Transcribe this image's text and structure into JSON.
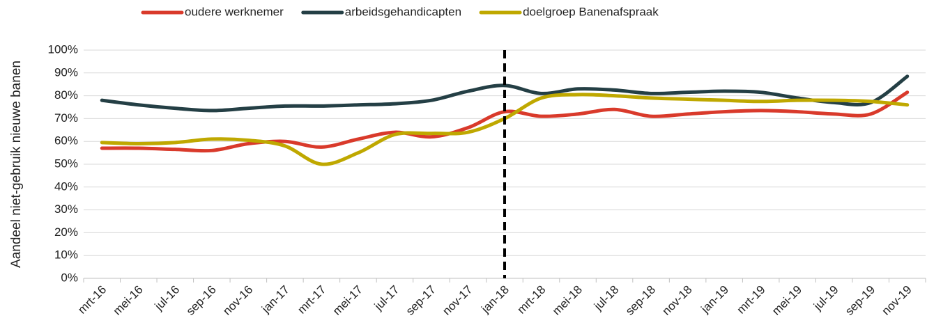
{
  "chart_data": {
    "type": "line",
    "y_label": "Aandeel niet-gebruik nieuwe banen",
    "categories": [
      "mrt-16",
      "mei-16",
      "jul-16",
      "sep-16",
      "nov-16",
      "jan-17",
      "mrt-17",
      "mei-17",
      "jul-17",
      "sep-17",
      "nov-17",
      "jan-18",
      "mrt-18",
      "mei-18",
      "jul-18",
      "sep-18",
      "nov-18",
      "jan-19",
      "mrt-19",
      "mei-19",
      "jul-19",
      "sep-19",
      "nov-19"
    ],
    "series": [
      {
        "name": "oudere werknemer",
        "color": "#d93a2b",
        "values": [
          57,
          57,
          56.5,
          56,
          59,
          60,
          57.5,
          61,
          64,
          62,
          66,
          73,
          71,
          72,
          74,
          71,
          72,
          73,
          73.5,
          73,
          72,
          72,
          81.5
        ]
      },
      {
        "name": "arbeidsgehandicapten",
        "color": "#243f45",
        "values": [
          78,
          76,
          74.5,
          73.5,
          74.5,
          75.5,
          75.5,
          76,
          76.5,
          78,
          82,
          84.5,
          81,
          83,
          82.5,
          81,
          81.5,
          82,
          81.5,
          79,
          77,
          77,
          88.5
        ]
      },
      {
        "name": "doelgroep Banenafspraak",
        "color": "#bfa800",
        "values": [
          59.5,
          59,
          59.5,
          61,
          60.5,
          58,
          50,
          55,
          63,
          63.5,
          64,
          70,
          79,
          80.5,
          80,
          79,
          78.5,
          78,
          77.5,
          78,
          78,
          77.5,
          76
        ]
      }
    ],
    "ylim": [
      0,
      100
    ],
    "yticks": [
      {
        "value": 0,
        "label": "0%"
      },
      {
        "value": 10,
        "label": "10%"
      },
      {
        "value": 20,
        "label": "20%"
      },
      {
        "value": 30,
        "label": "30%"
      },
      {
        "value": 40,
        "label": "40%"
      },
      {
        "value": 50,
        "label": "50%"
      },
      {
        "value": 60,
        "label": "60%"
      },
      {
        "value": 70,
        "label": "70%"
      },
      {
        "value": 80,
        "label": "80%"
      },
      {
        "value": 90,
        "label": "90%"
      },
      {
        "value": 100,
        "label": "100%"
      }
    ],
    "grid": true,
    "smooth": true,
    "reference_line": {
      "category_index": 11,
      "style": "dashed"
    },
    "legend": "top"
  }
}
